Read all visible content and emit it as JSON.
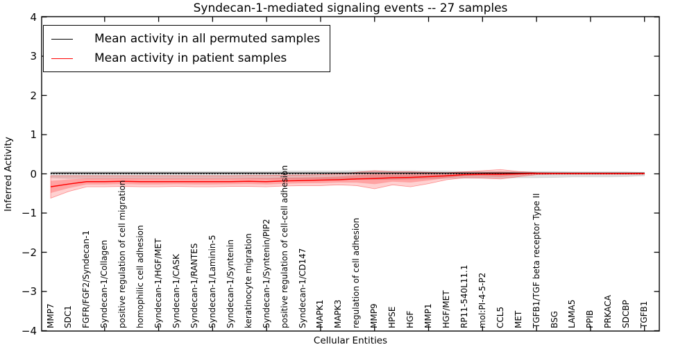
{
  "title": "Syndecan-1-mediated signaling events -- 27 samples",
  "axes": {
    "x_label": "Cellular Entities",
    "y_label": "Inferred Activity"
  },
  "chart_data": {
    "type": "line",
    "title": "Syndecan-1-mediated signaling events -- 27 samples",
    "xlabel": "Cellular Entities",
    "ylabel": "Inferred Activity",
    "ylim": [
      -4,
      4
    ],
    "y_ticks": [
      4,
      3,
      2,
      1,
      0,
      -1,
      -2,
      -3,
      -4
    ],
    "grid": false,
    "legend_position": "upper left",
    "zero_line": {
      "style": "dotted",
      "color": "#000000",
      "y": 0
    },
    "categories": [
      "MMP7",
      "SDC1",
      "FGFR/FGF2/Syndecan-1",
      "Syndecan-1/Collagen",
      "positive regulation of cell migration",
      "homophilic cell adhesion",
      "Syndecan-1/HGF/MET",
      "Syndecan-1/CASK",
      "Syndecan-1/RANTES",
      "Syndecan-1/Laminin-5",
      "Syndecan-1/Syntenin",
      "keratinocyte migration",
      "Syndecan-1/Syntenin/PIP2",
      "positive regulation of cell-cell adhesion",
      "Syndecan-1/CD147",
      "MAPK1",
      "MAPK3",
      "regulation of cell adhesion",
      "MMP9",
      "HPSE",
      "HGF",
      "MMP1",
      "HGF/MET",
      "RP11-540L11.1",
      "mol:PI-4-5-P2",
      "CCL5",
      "MET",
      "TGFB1/TGF beta receptor Type II",
      "BSG",
      "LAMA5",
      "PPIB",
      "PRKACA",
      "SDCBP",
      "TGFB1"
    ],
    "series": [
      {
        "name": "Mean activity in all permuted samples",
        "color": "#000000",
        "values": [
          0.02,
          0.02,
          0.02,
          0.02,
          0.02,
          0.02,
          0.02,
          0.02,
          0.02,
          0.02,
          0.02,
          0.02,
          0.02,
          0.02,
          0.02,
          0.02,
          0.02,
          0.02,
          0.02,
          0.02,
          0.02,
          0.02,
          0.02,
          0.02,
          0.02,
          0.02,
          0.02,
          0.02,
          0.02,
          0.02,
          0.02,
          0.02,
          0.02,
          0.02
        ]
      },
      {
        "name": "Mean activity in patient samples",
        "color": "#ff0000",
        "values": [
          -0.33,
          -0.26,
          -0.2,
          -0.2,
          -0.19,
          -0.2,
          -0.2,
          -0.2,
          -0.2,
          -0.2,
          -0.2,
          -0.19,
          -0.2,
          -0.18,
          -0.17,
          -0.16,
          -0.15,
          -0.13,
          -0.12,
          -0.1,
          -0.09,
          -0.07,
          -0.05,
          -0.02,
          -0.01,
          -0.01,
          0.0,
          0.01,
          0.01,
          0.01,
          0.01,
          0.01,
          0.01,
          0.01
        ]
      }
    ],
    "bands": [
      {
        "name": "permuted samples std band",
        "color": "#000000",
        "opacity": 0.13,
        "upper": [
          0.05,
          0.06,
          0.06,
          0.06,
          0.06,
          0.06,
          0.06,
          0.06,
          0.06,
          0.06,
          0.06,
          0.06,
          0.06,
          0.07,
          0.07,
          0.07,
          0.07,
          0.08,
          0.08,
          0.08,
          0.08,
          0.07,
          0.07,
          0.06,
          0.06,
          0.06,
          0.06,
          0.06,
          0.06,
          0.05,
          0.05,
          0.05,
          0.05,
          0.04
        ],
        "lower": [
          -0.1,
          -0.12,
          -0.12,
          -0.12,
          -0.12,
          -0.12,
          -0.12,
          -0.12,
          -0.12,
          -0.12,
          -0.12,
          -0.12,
          -0.13,
          -0.13,
          -0.13,
          -0.13,
          -0.13,
          -0.13,
          -0.14,
          -0.14,
          -0.13,
          -0.12,
          -0.12,
          -0.11,
          -0.11,
          -0.11,
          -0.1,
          -0.1,
          -0.09,
          -0.08,
          -0.08,
          -0.08,
          -0.07,
          -0.05
        ]
      },
      {
        "name": "patient samples std band",
        "color": "#ff0000",
        "opacity": 0.18,
        "upper": [
          -0.05,
          -0.05,
          -0.05,
          -0.05,
          -0.05,
          -0.05,
          -0.05,
          -0.05,
          -0.05,
          -0.05,
          -0.05,
          -0.04,
          -0.04,
          -0.03,
          -0.03,
          -0.02,
          0.0,
          0.04,
          0.08,
          0.05,
          0.05,
          0.04,
          0.03,
          0.05,
          0.08,
          0.11,
          0.06,
          0.03,
          0.02,
          0.02,
          0.02,
          0.02,
          0.02,
          0.02
        ],
        "lower": [
          -0.62,
          -0.45,
          -0.33,
          -0.33,
          -0.32,
          -0.33,
          -0.33,
          -0.32,
          -0.33,
          -0.33,
          -0.32,
          -0.32,
          -0.33,
          -0.31,
          -0.3,
          -0.3,
          -0.28,
          -0.3,
          -0.38,
          -0.28,
          -0.33,
          -0.25,
          -0.15,
          -0.1,
          -0.11,
          -0.13,
          -0.07,
          -0.02,
          -0.01,
          -0.01,
          -0.01,
          -0.01,
          -0.01,
          -0.01
        ]
      }
    ]
  }
}
